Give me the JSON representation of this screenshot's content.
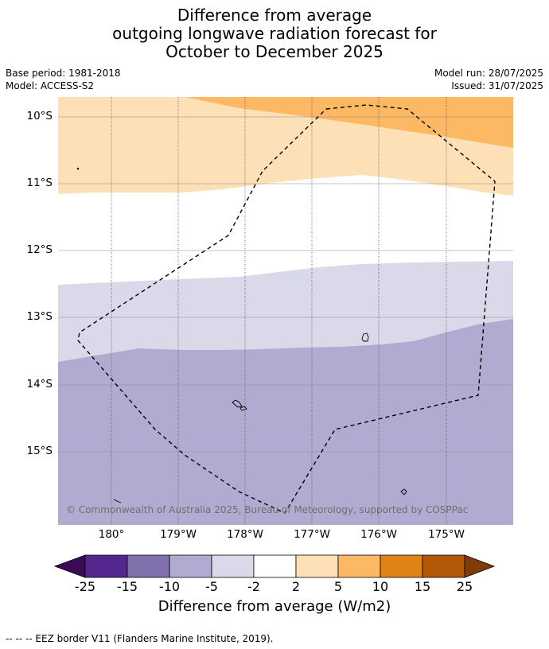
{
  "header": {
    "title_line1": "Difference from average",
    "title_line2": "outgoing longwave radiation forecast for",
    "title_line3": "October to December 2025",
    "base_period": "Base period: 1981-2018",
    "model": "Model: ACCESS-S2",
    "model_run": "Model run: 28/07/2025",
    "issued": "Issued: 31/07/2025"
  },
  "map": {
    "lat_labels": [
      "10°S",
      "11°S",
      "12°S",
      "13°S",
      "14°S",
      "15°S"
    ],
    "lon_labels": [
      "180°",
      "179°W",
      "178°W",
      "177°W",
      "176°W",
      "175°W"
    ],
    "copyright": "© Commonwealth of Australia 2025, Bureau of Meteorology, supported by COSPPac",
    "colors": {
      "neg_25": "#3d0a55",
      "neg_15": "#54278f",
      "neg_10": "#8071ad",
      "neg_5": "#b1abd1",
      "neg_2": "#d9d9ea",
      "zero": "#ffffff",
      "pos_2": "#fee0b6",
      "pos_5": "#fdb863",
      "pos_10": "#e08214",
      "pos_15": "#b35806",
      "pos_25": "#7f3b08"
    }
  },
  "colorbar": {
    "ticks": [
      "-25",
      "-15",
      "-10",
      "-5",
      "-2",
      "2",
      "5",
      "10",
      "15",
      "25"
    ],
    "label": "Difference from average (W/m2)"
  },
  "footnote": "--  --  -- EEZ border V11 (Flanders Marine Institute, 2019)."
}
